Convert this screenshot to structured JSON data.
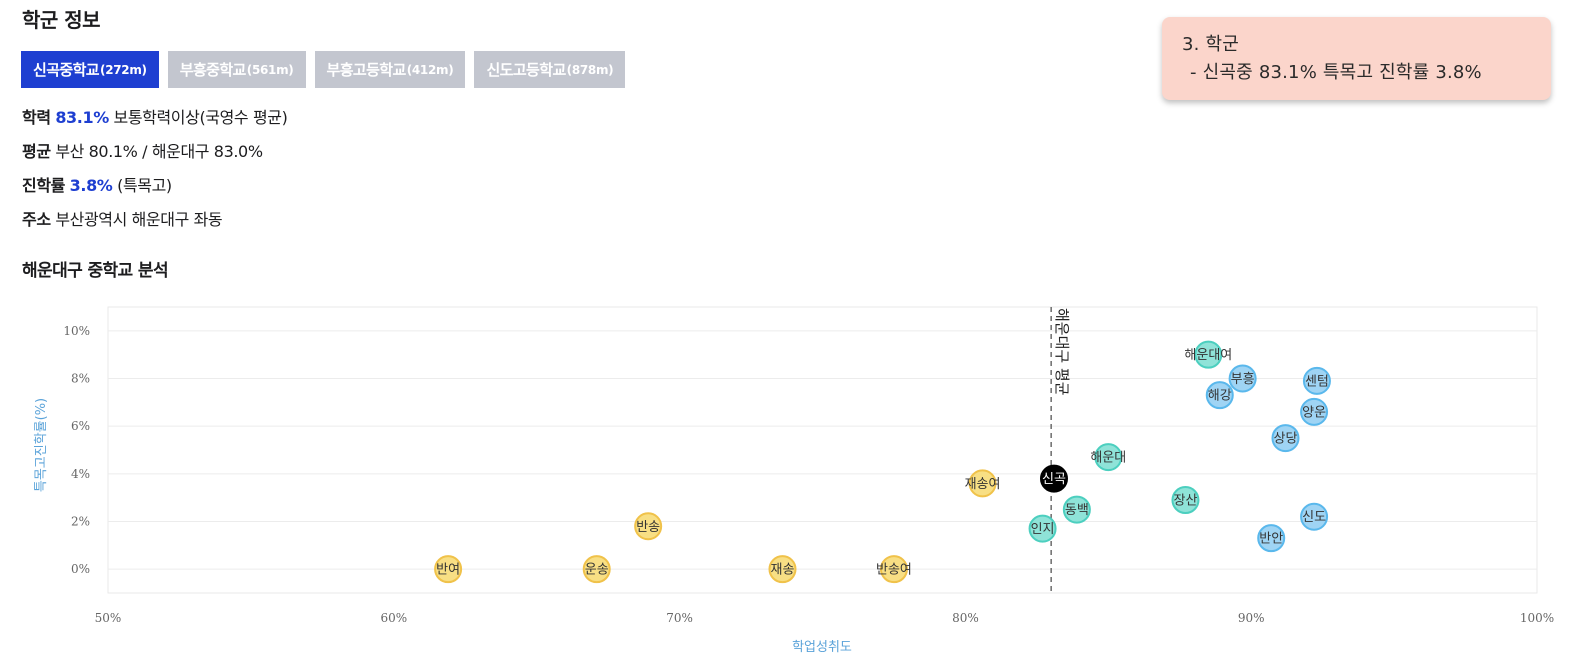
{
  "header": {
    "title": "학군 정보"
  },
  "tabs": [
    {
      "name": "신곡중학교",
      "distance": "(272m)",
      "active": true
    },
    {
      "name": "부흥중학교",
      "distance": "(561m)",
      "active": false
    },
    {
      "name": "부흥고등학교",
      "distance": "(412m)",
      "active": false
    },
    {
      "name": "신도고등학교",
      "distance": "(878m)",
      "active": false
    }
  ],
  "info": {
    "academic": {
      "label": "학력",
      "value": "83.1%",
      "desc": "보통학력이상(국영수 평균)"
    },
    "average": {
      "label": "평균",
      "text": "부산 80.1% / 해운대구 83.0%"
    },
    "advancement": {
      "label": "진학률",
      "value": "3.8%",
      "desc": "(특목고)"
    },
    "address": {
      "label": "주소",
      "text": "부산광역시 해운대구 좌동"
    }
  },
  "analysis": {
    "title": "해운대구 중학교 분석"
  },
  "note": {
    "line1": "3. 학군",
    "line2": "- 신곡중 83.1%  특목고 진학률 3.8%"
  },
  "colors": {
    "accent": "#1e3fd1",
    "tab_inactive": "#c3c6cf",
    "yellow_fill": "#f8df84",
    "yellow_stroke": "#f0c24a",
    "teal_fill": "#8fe3d8",
    "teal_stroke": "#4ccfbf",
    "blue_fill": "#9fd4f4",
    "blue_stroke": "#5ab8ec",
    "highlight": "#000000"
  },
  "chart_data": {
    "type": "scatter",
    "xlabel": "학업성취도",
    "ylabel": "특목고진학률(%)",
    "xlim": [
      50,
      100
    ],
    "ylim": [
      -1,
      11
    ],
    "xticks": [
      50,
      60,
      70,
      80,
      90,
      100
    ],
    "yticks": [
      0,
      2,
      4,
      6,
      8,
      10
    ],
    "x_tick_labels": [
      "50%",
      "60%",
      "70%",
      "80%",
      "90%",
      "100%"
    ],
    "y_tick_labels": [
      "0%",
      "2%",
      "4%",
      "6%",
      "8%",
      "10%"
    ],
    "grid": true,
    "reference_line": {
      "x": 83.0,
      "label": "해운대구 평균"
    },
    "points": [
      {
        "name": "반여",
        "x": 61.9,
        "y": 0.0,
        "group": "yellow"
      },
      {
        "name": "운송",
        "x": 67.1,
        "y": 0.0,
        "group": "yellow"
      },
      {
        "name": "반송",
        "x": 68.9,
        "y": 1.8,
        "group": "yellow"
      },
      {
        "name": "재송",
        "x": 73.6,
        "y": 0.0,
        "group": "yellow"
      },
      {
        "name": "반송여",
        "x": 77.5,
        "y": 0.0,
        "group": "yellow"
      },
      {
        "name": "재송여",
        "x": 80.6,
        "y": 3.6,
        "group": "yellow"
      },
      {
        "name": "신곡",
        "x": 83.1,
        "y": 3.8,
        "group": "highlight"
      },
      {
        "name": "인지",
        "x": 82.7,
        "y": 1.7,
        "group": "teal"
      },
      {
        "name": "동백",
        "x": 83.9,
        "y": 2.5,
        "group": "teal"
      },
      {
        "name": "해운대",
        "x": 85.0,
        "y": 4.7,
        "group": "teal"
      },
      {
        "name": "장산",
        "x": 87.7,
        "y": 2.9,
        "group": "teal"
      },
      {
        "name": "해운대여",
        "x": 88.5,
        "y": 9.0,
        "group": "teal"
      },
      {
        "name": "부흥",
        "x": 89.7,
        "y": 8.0,
        "group": "blue"
      },
      {
        "name": "해강",
        "x": 88.9,
        "y": 7.3,
        "group": "blue"
      },
      {
        "name": "센텀",
        "x": 92.3,
        "y": 7.9,
        "group": "blue"
      },
      {
        "name": "양운",
        "x": 92.2,
        "y": 6.6,
        "group": "blue"
      },
      {
        "name": "상당",
        "x": 91.2,
        "y": 5.5,
        "group": "blue"
      },
      {
        "name": "반안",
        "x": 90.7,
        "y": 1.3,
        "group": "blue"
      },
      {
        "name": "신도",
        "x": 92.2,
        "y": 2.2,
        "group": "blue"
      }
    ]
  }
}
